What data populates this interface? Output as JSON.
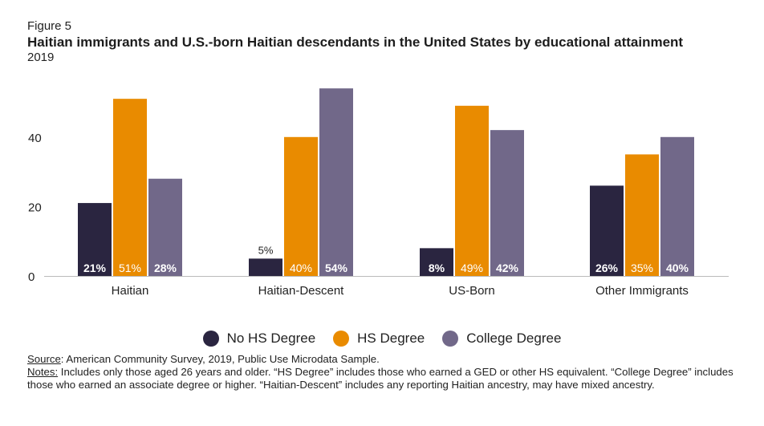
{
  "figure_label": "Figure 5",
  "chart_data": {
    "type": "bar",
    "title": "Haitian immigrants and U.S.-born Haitian descendants in the United States by educational attainment",
    "subtitle": "2019",
    "categories": [
      "Haitian",
      "Haitian-Descent",
      "US-Born",
      "Other Immigrants"
    ],
    "series": [
      {
        "name": "No HS Degree",
        "values": [
          21,
          5,
          8,
          26
        ],
        "labels": [
          "21%",
          "5%",
          "8%",
          "26%"
        ],
        "color": "#2a2540"
      },
      {
        "name": "HS Degree",
        "values": [
          51,
          40,
          49,
          35
        ],
        "labels": [
          "51%",
          "40%",
          "49%",
          "35%"
        ],
        "color": "#e98b00"
      },
      {
        "name": "College Degree",
        "values": [
          28,
          54,
          42,
          40
        ],
        "labels": [
          "28%",
          "54%",
          "42%",
          "40%"
        ],
        "color": "#716889"
      }
    ],
    "yticks": [
      0,
      20,
      40
    ],
    "ylim": [
      0,
      57
    ],
    "grid": false,
    "legend_position": "bottom",
    "xlabel": "",
    "ylabel": ""
  },
  "footnote": {
    "source_label": "Source",
    "source_text": ": American Community Survey, 2019, Public Use Microdata Sample.",
    "notes_label": "Notes:",
    "notes_text": " Includes only those aged 26 years and older. “HS Degree” includes those who earned a GED or other HS equivalent. “College Degree” includes those who earned an associate degree or higher. “Haitian-Descent” includes any reporting Haitian ancestry, may have mixed ancestry."
  }
}
